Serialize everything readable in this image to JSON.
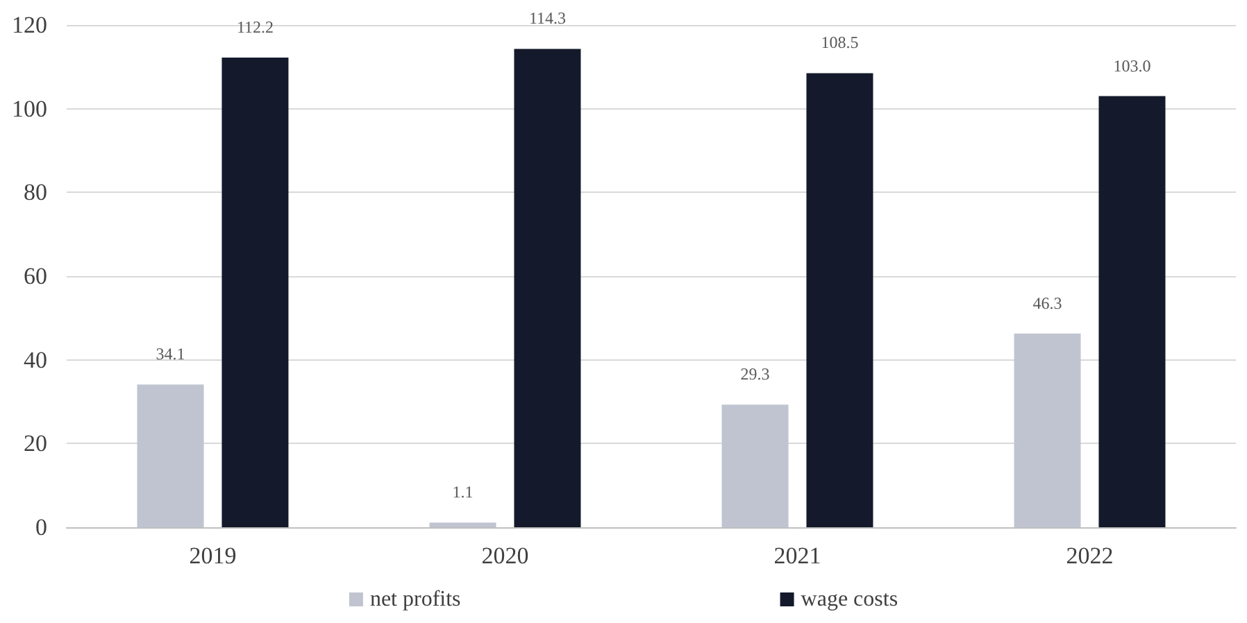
{
  "chart_data": {
    "type": "bar",
    "categories": [
      "2019",
      "2020",
      "2021",
      "2022"
    ],
    "series": [
      {
        "name": "net profits",
        "color": "#c0c4d0",
        "values": [
          34.1,
          1.1,
          29.3,
          46.3
        ],
        "value_labels": [
          "34.1",
          "1.1",
          "29.3",
          "46.3"
        ]
      },
      {
        "name": "wage costs",
        "color": "#141a2b",
        "values": [
          112.2,
          114.3,
          108.5,
          103.0
        ],
        "value_labels": [
          "112.2",
          "114.3",
          "108.5",
          "103.0"
        ]
      }
    ],
    "ylim": [
      0,
      120
    ],
    "yticks": [
      0,
      20,
      40,
      60,
      80,
      100,
      120
    ],
    "grid": "y",
    "legend": "bottom"
  }
}
